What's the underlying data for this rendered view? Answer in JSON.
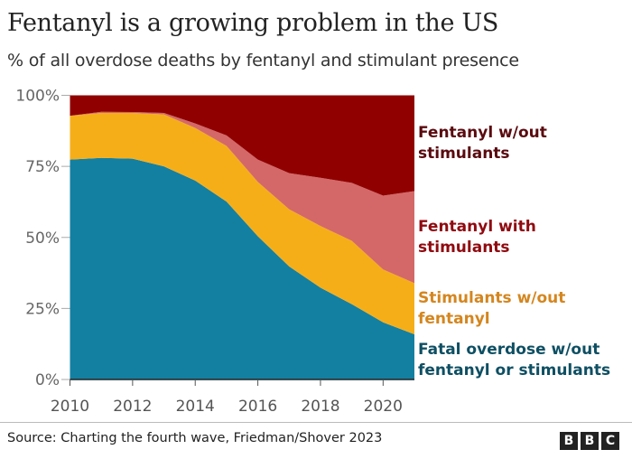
{
  "chart_data": {
    "type": "area",
    "stacked": true,
    "title": "Fentanyl is a growing problem in the US",
    "subtitle": "% of all overdose deaths by fentanyl and stimulant presence",
    "xlabel": "",
    "ylabel": "",
    "x": [
      2010,
      2011,
      2012,
      2013,
      2014,
      2015,
      2016,
      2017,
      2018,
      2019,
      2020,
      2021
    ],
    "x_ticks": [
      "2010",
      "2012",
      "2014",
      "2016",
      "2018",
      "2020"
    ],
    "y_ticks": [
      "0%",
      "25%",
      "50%",
      "75%",
      "100%"
    ],
    "ylim": [
      0,
      100
    ],
    "grid": false,
    "legend_placement": "right (inline labels)",
    "series": [
      {
        "name": "Fatal overdose w/out fentanyl or stimulants",
        "color": "#1380a1",
        "label_color": "#0e4f63",
        "values": [
          77.4,
          78.0,
          77.7,
          75.0,
          70.0,
          62.6,
          50.4,
          39.8,
          32.3,
          26.5,
          20.1,
          15.9
        ]
      },
      {
        "name": "Stimulants w/out fentanyl",
        "color": "#f6ae18",
        "label_color": "#d4861f",
        "values": [
          15.4,
          15.8,
          16.1,
          18.3,
          18.5,
          19.6,
          19.1,
          20.1,
          21.7,
          22.3,
          18.6,
          18.0
        ]
      },
      {
        "name": "Fentanyl with stimulants",
        "color": "#d46868",
        "label_color": "#8f0a10",
        "values": [
          0.0,
          0.4,
          0.3,
          0.5,
          1.6,
          3.7,
          7.9,
          12.7,
          17.0,
          20.4,
          26.0,
          32.4
        ]
      },
      {
        "name": "Fentanyl w/out stimulants",
        "color": "#900000",
        "label_color": "#5a0a0f",
        "values": [
          7.2,
          5.8,
          5.9,
          6.2,
          9.9,
          14.1,
          22.6,
          27.4,
          29.0,
          30.8,
          35.3,
          33.7
        ]
      }
    ],
    "legend_text": {
      "fent_wout": "Fentanyl w/out\nstimulants",
      "fent_with": "Fentanyl with\nstimulants",
      "stim_wout": "Stimulants w/out\nfentanyl",
      "fatal": "Fatal overdose w/out\nfentanyl or stimulants"
    }
  },
  "source": "Source: Charting the fourth wave, Friedman/Shover 2023",
  "logo": [
    "B",
    "B",
    "C"
  ]
}
